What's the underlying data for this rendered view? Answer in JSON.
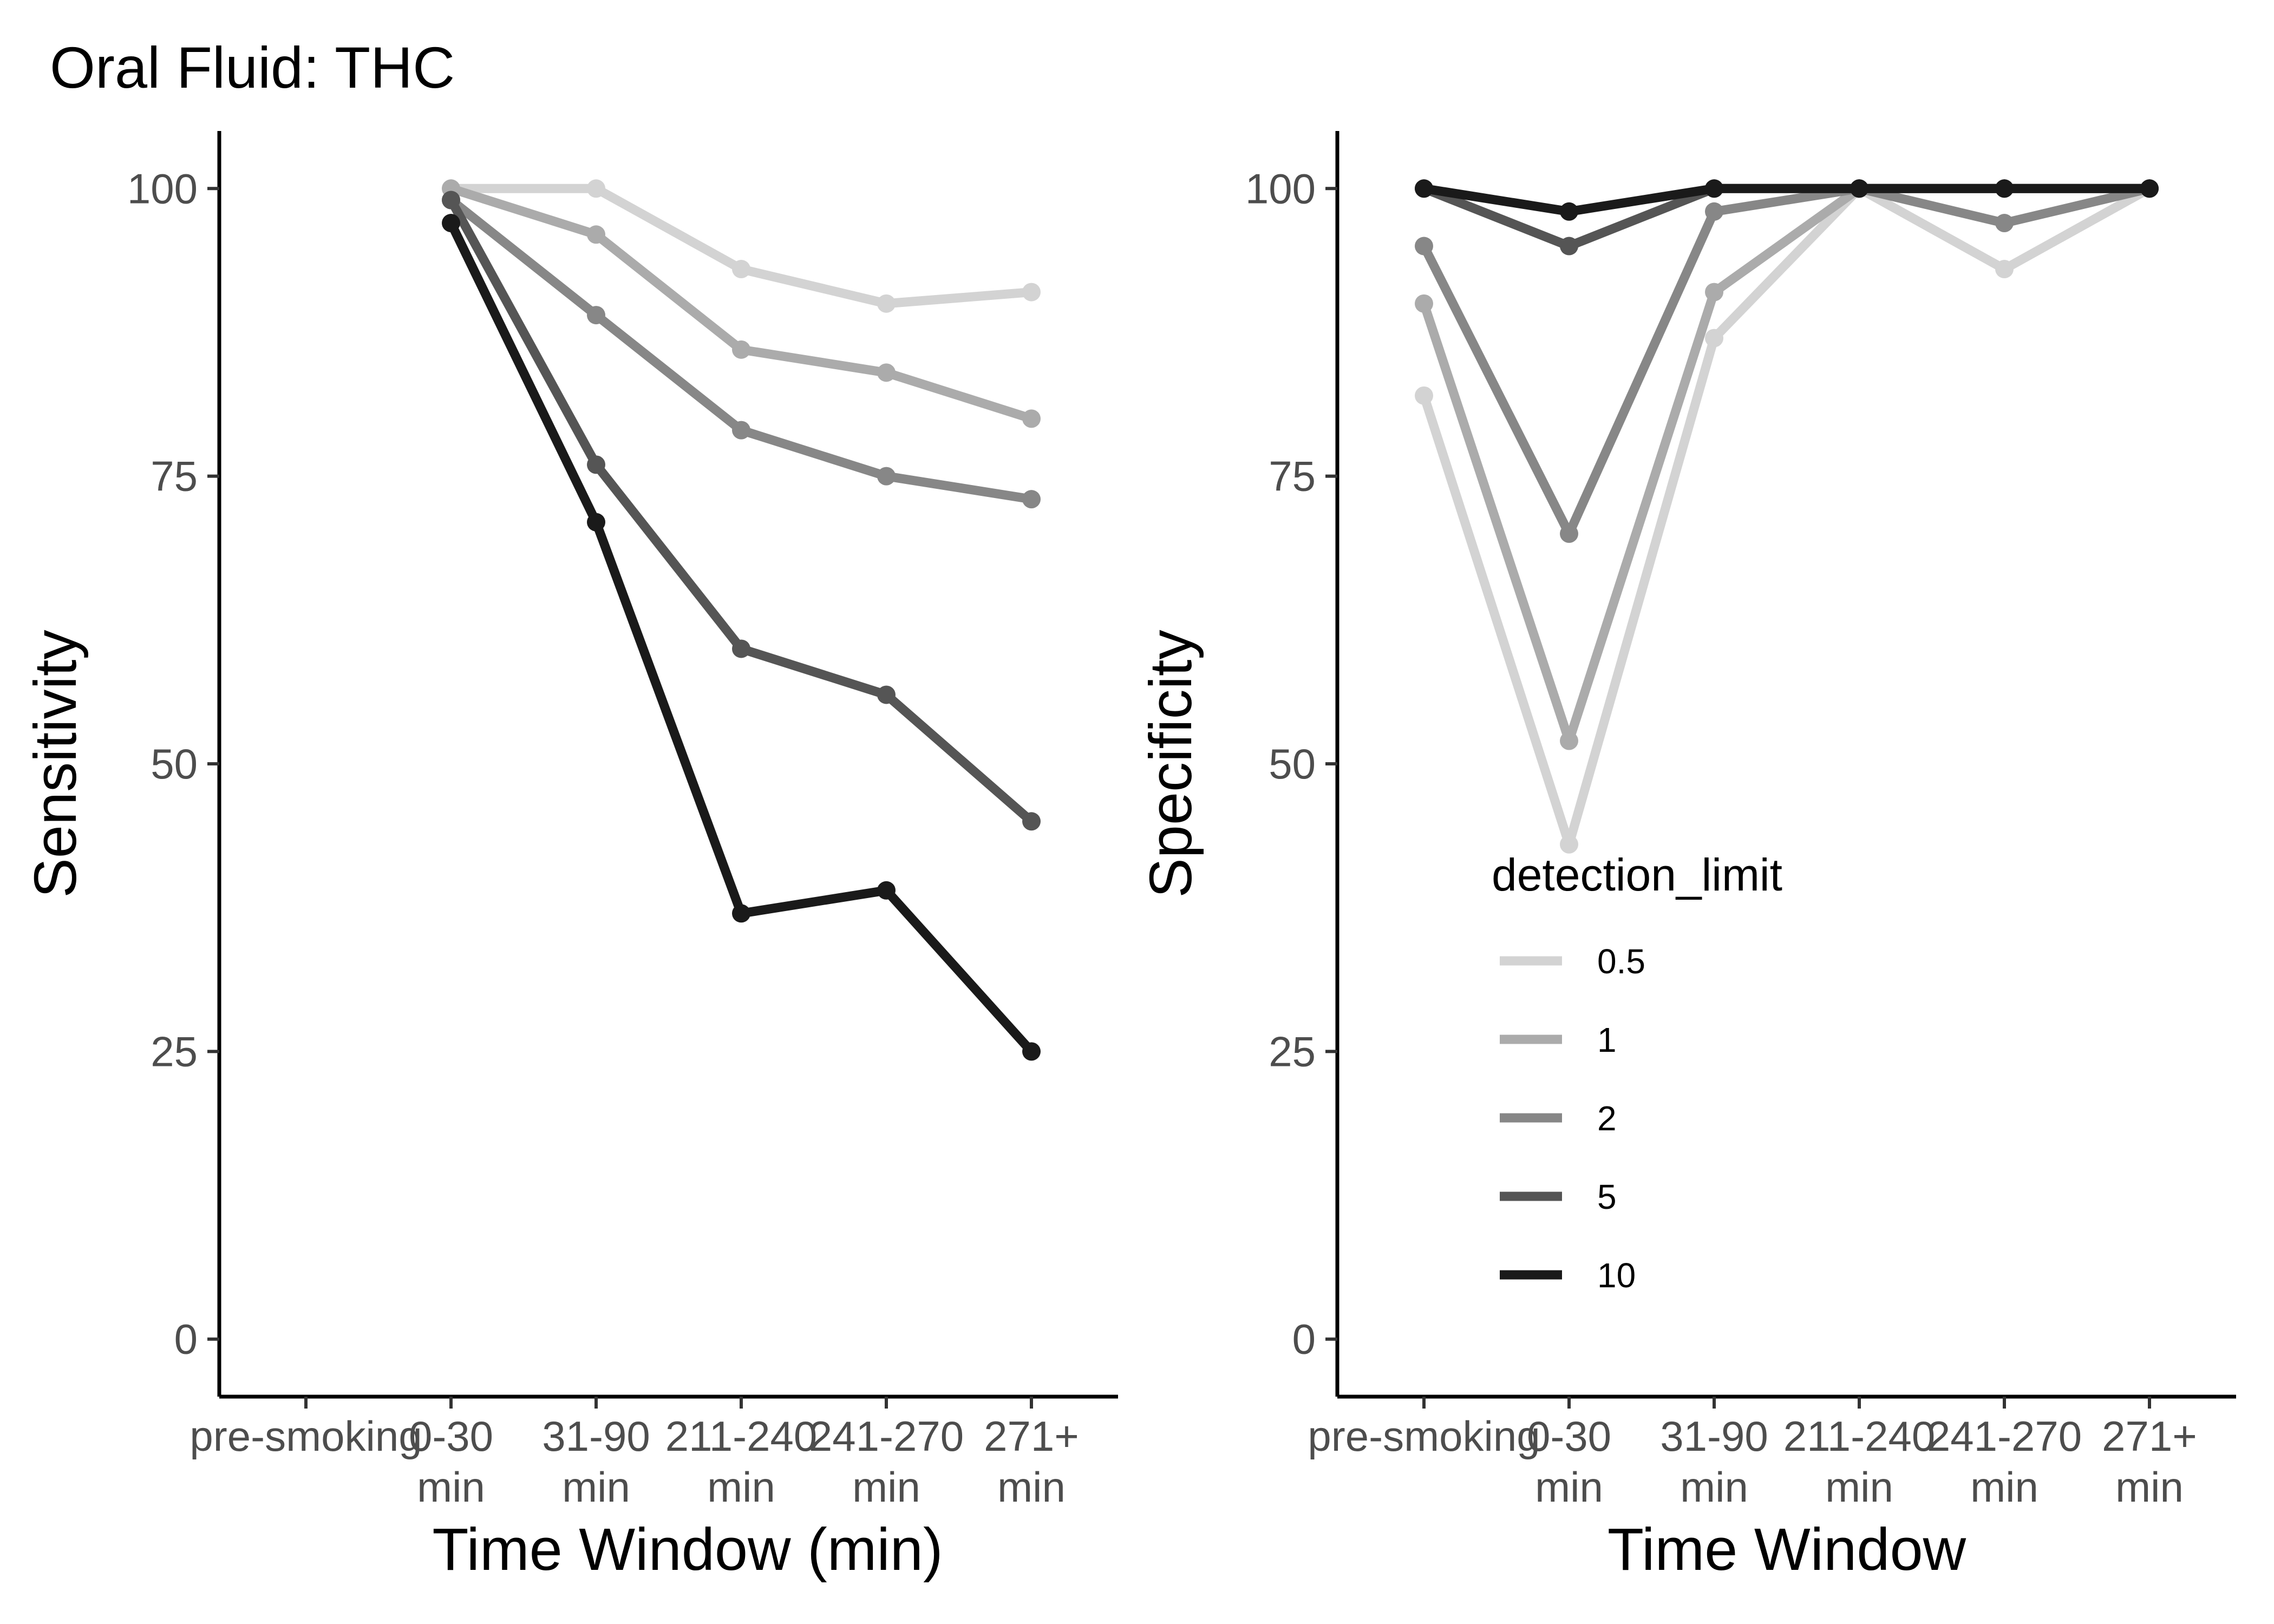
{
  "figure_title": "Oral Fluid: THC",
  "chart_data": [
    {
      "type": "line",
      "id": "sensitivity",
      "title": "",
      "xlabel": "Time Window (min)",
      "ylabel": "Sensitivity",
      "categories": [
        "pre-smoking",
        "0-30\nmin",
        "31-90\nmin",
        "211-240\nmin",
        "241-270\nmin",
        "271+\nmin"
      ],
      "ylim": [
        -5,
        105
      ],
      "yticks": [
        0,
        25,
        50,
        75,
        100
      ],
      "grid": false,
      "series": [
        {
          "name": "0.5",
          "color": "#d3d3d3",
          "values": [
            null,
            100,
            100,
            93,
            90,
            91
          ]
        },
        {
          "name": "1",
          "color": "#ababab",
          "values": [
            null,
            100,
            96,
            86,
            84,
            80
          ]
        },
        {
          "name": "2",
          "color": "#878787",
          "values": [
            null,
            99,
            89,
            79,
            75,
            73
          ]
        },
        {
          "name": "5",
          "color": "#555555",
          "values": [
            null,
            99,
            76,
            60,
            56,
            45
          ]
        },
        {
          "name": "10",
          "color": "#1a1a1a",
          "values": [
            null,
            97,
            71,
            37,
            39,
            25
          ]
        }
      ]
    },
    {
      "type": "line",
      "id": "specificity",
      "title": "",
      "xlabel": "Time Window",
      "ylabel": "Specificity",
      "categories": [
        "pre-smoking",
        "0-30\nmin",
        "31-90\nmin",
        "211-240\nmin",
        "241-270\nmin",
        "271+\nmin"
      ],
      "ylim": [
        -5,
        105
      ],
      "yticks": [
        0,
        25,
        50,
        75,
        100
      ],
      "grid": false,
      "series": [
        {
          "name": "0.5",
          "color": "#d3d3d3",
          "values": [
            82,
            43,
            87,
            100,
            93,
            100
          ]
        },
        {
          "name": "1",
          "color": "#ababab",
          "values": [
            90,
            52,
            91,
            100,
            100,
            100
          ]
        },
        {
          "name": "2",
          "color": "#878787",
          "values": [
            95,
            70,
            98,
            100,
            97,
            100
          ]
        },
        {
          "name": "5",
          "color": "#555555",
          "values": [
            100,
            95,
            100,
            100,
            100,
            100
          ]
        },
        {
          "name": "10",
          "color": "#1a1a1a",
          "values": [
            100,
            98,
            100,
            100,
            100,
            100
          ]
        }
      ]
    }
  ],
  "legend": {
    "title": "detection_limit",
    "placement": "inside bottom-left of right panel",
    "items": [
      "0.5",
      "1",
      "2",
      "5",
      "10"
    ]
  }
}
